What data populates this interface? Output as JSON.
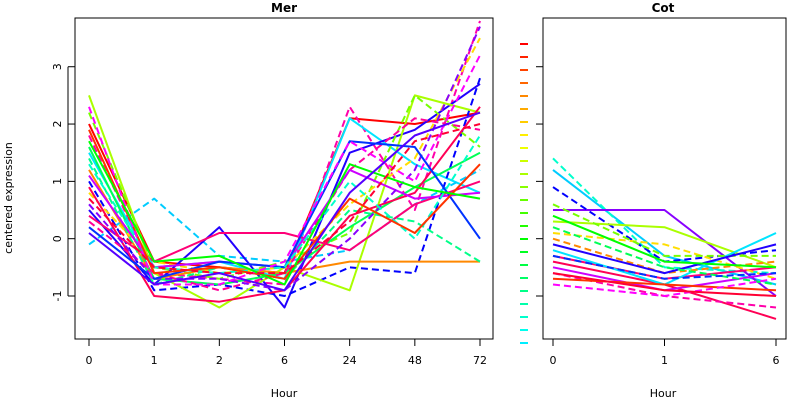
{
  "chart_data": [
    {
      "type": "line",
      "title": "Mer",
      "xlabel": "Hour",
      "ylabel": "centered expression",
      "categories": [
        "0",
        "1",
        "2",
        "6",
        "24",
        "48",
        "72"
      ],
      "yticks": [
        -1,
        0,
        1,
        2,
        3
      ],
      "ylim": [
        -1.75,
        3.85
      ],
      "grid": false,
      "series": [
        {
          "color": "#ff0000",
          "dash": false,
          "values": [
            2.0,
            -0.4,
            -0.5,
            -0.6,
            2.1,
            2.0,
            2.2
          ]
        },
        {
          "color": "#ff00aa",
          "dash": true,
          "values": [
            1.8,
            -0.6,
            -0.7,
            -0.8,
            2.3,
            0.5,
            3.8
          ]
        },
        {
          "color": "#00e5ff",
          "dash": false,
          "values": [
            1.5,
            -0.5,
            -0.4,
            -0.7,
            2.1,
            1.3,
            0.8
          ]
        },
        {
          "color": "#00ccff",
          "dash": true,
          "values": [
            -0.1,
            0.7,
            -0.3,
            -0.4,
            -0.2,
            0.6,
            1.2
          ]
        },
        {
          "color": "#2200ff",
          "dash": false,
          "values": [
            0.5,
            -0.8,
            0.2,
            -1.2,
            1.5,
            1.9,
            2.7
          ]
        },
        {
          "color": "#0000ff",
          "dash": true,
          "values": [
            1.0,
            -0.9,
            -0.8,
            -1.0,
            -0.5,
            -0.6,
            2.8
          ]
        },
        {
          "color": "#aaff00",
          "dash": false,
          "values": [
            2.5,
            -0.6,
            -1.2,
            -0.5,
            -0.9,
            2.5,
            2.2
          ]
        },
        {
          "color": "#77ff00",
          "dash": true,
          "values": [
            2.2,
            -0.5,
            -0.7,
            -0.4,
            0.1,
            2.5,
            1.6
          ]
        },
        {
          "color": "#ff8800",
          "dash": false,
          "values": [
            1.2,
            -0.7,
            -0.5,
            -0.6,
            -0.4,
            -0.4,
            -0.4
          ]
        },
        {
          "color": "#ffdd00",
          "dash": true,
          "values": [
            0.8,
            -0.4,
            -0.6,
            -0.5,
            0.6,
            1.4,
            3.5
          ]
        },
        {
          "color": "#00ff55",
          "dash": false,
          "values": [
            1.6,
            -0.7,
            -0.8,
            -0.6,
            0.2,
            0.9,
            1.5
          ]
        },
        {
          "color": "#00ff88",
          "dash": true,
          "values": [
            1.4,
            -0.8,
            -0.5,
            -0.7,
            0.5,
            0.3,
            -0.4
          ]
        },
        {
          "color": "#ff0055",
          "dash": false,
          "values": [
            0.9,
            -1.0,
            -1.1,
            -0.9,
            0.4,
            0.8,
            2.3
          ]
        },
        {
          "color": "#ff0099",
          "dash": true,
          "values": [
            0.3,
            -0.6,
            -0.9,
            -0.6,
            1.2,
            2.1,
            1.9
          ]
        },
        {
          "color": "#ff0077",
          "dash": false,
          "values": [
            0.4,
            -0.4,
            0.1,
            0.1,
            -0.2,
            0.6,
            1.0
          ]
        },
        {
          "color": "#cc00ff",
          "dash": false,
          "values": [
            1.1,
            -0.5,
            -0.4,
            -0.5,
            1.2,
            0.7,
            0.8
          ]
        },
        {
          "color": "#8800ff",
          "dash": true,
          "values": [
            0.6,
            -0.7,
            -0.7,
            -0.9,
            0.0,
            1.2,
            3.7
          ]
        },
        {
          "color": "#0033ff",
          "dash": false,
          "values": [
            0.2,
            -0.7,
            -0.4,
            -0.5,
            1.7,
            1.6,
            0.0
          ]
        },
        {
          "color": "#00ffcc",
          "dash": true,
          "values": [
            1.3,
            -0.5,
            -0.6,
            -0.5,
            1.0,
            0.0,
            1.8
          ]
        },
        {
          "color": "#ff3300",
          "dash": false,
          "values": [
            1.9,
            -0.6,
            -0.5,
            -0.7,
            0.7,
            0.1,
            1.3
          ]
        },
        {
          "color": "#ff00ff",
          "dash": true,
          "values": [
            2.3,
            -0.8,
            -0.8,
            -0.4,
            1.7,
            1.0,
            3.2
          ]
        },
        {
          "color": "#00ff00",
          "dash": false,
          "values": [
            1.7,
            -0.4,
            -0.3,
            -0.8,
            1.3,
            0.9,
            0.7
          ]
        },
        {
          "color": "#ff0033",
          "dash": true,
          "values": [
            0.7,
            -0.5,
            -0.6,
            -0.6,
            0.3,
            1.7,
            2.0
          ]
        },
        {
          "color": "#5500ff",
          "dash": false,
          "values": [
            0.1,
            -0.8,
            -0.6,
            -0.9,
            0.8,
            1.8,
            2.2
          ]
        }
      ]
    },
    {
      "type": "line",
      "title": "Cot",
      "xlabel": "Hour",
      "ylabel": "",
      "categories": [
        "0",
        "1",
        "6"
      ],
      "ylim": [
        -1.75,
        3.85
      ],
      "grid": false,
      "series": [
        {
          "color": "#00ccff",
          "dash": false,
          "values": [
            1.2,
            -0.3,
            -0.8
          ]
        },
        {
          "color": "#00ffcc",
          "dash": true,
          "values": [
            1.4,
            -0.5,
            -0.6
          ]
        },
        {
          "color": "#8800ff",
          "dash": false,
          "values": [
            0.5,
            0.5,
            -1.0
          ]
        },
        {
          "color": "#0000ff",
          "dash": true,
          "values": [
            0.9,
            -0.4,
            -0.2
          ]
        },
        {
          "color": "#ff0055",
          "dash": false,
          "values": [
            -0.4,
            -0.8,
            -1.4
          ]
        },
        {
          "color": "#ff00aa",
          "dash": true,
          "values": [
            -0.6,
            -1.0,
            -1.2
          ]
        },
        {
          "color": "#ff0077",
          "dash": false,
          "values": [
            -0.3,
            -0.7,
            -0.5
          ]
        },
        {
          "color": "#aaff00",
          "dash": false,
          "values": [
            0.3,
            0.2,
            -0.5
          ]
        },
        {
          "color": "#ffdd00",
          "dash": true,
          "values": [
            0.1,
            -0.1,
            -0.7
          ]
        },
        {
          "color": "#00e5ff",
          "dash": false,
          "values": [
            -0.2,
            -0.8,
            0.1
          ]
        },
        {
          "color": "#ff8800",
          "dash": true,
          "values": [
            0.0,
            -0.6,
            -0.4
          ]
        },
        {
          "color": "#cc00ff",
          "dash": false,
          "values": [
            -0.5,
            -0.9,
            -0.6
          ]
        },
        {
          "color": "#77ff00",
          "dash": true,
          "values": [
            0.6,
            -0.3,
            -0.3
          ]
        },
        {
          "color": "#2200ff",
          "dash": false,
          "values": [
            -0.1,
            -0.6,
            -0.1
          ]
        },
        {
          "color": "#00ff55",
          "dash": true,
          "values": [
            0.2,
            -0.5,
            -0.8
          ]
        },
        {
          "color": "#ff3300",
          "dash": false,
          "values": [
            -0.7,
            -0.8,
            -0.9
          ]
        },
        {
          "color": "#ff00ff",
          "dash": true,
          "values": [
            -0.8,
            -1.0,
            -0.7
          ]
        },
        {
          "color": "#00ff00",
          "dash": false,
          "values": [
            0.4,
            -0.4,
            -0.5
          ]
        },
        {
          "color": "#0033ff",
          "dash": true,
          "values": [
            -0.3,
            -0.7,
            -0.6
          ]
        },
        {
          "color": "#ff0033",
          "dash": false,
          "values": [
            -0.6,
            -0.9,
            -1.0
          ]
        }
      ]
    }
  ],
  "legend_marks": [
    "#ff0000",
    "#ff2200",
    "#ff4400",
    "#ff6600",
    "#ff8800",
    "#ffaa00",
    "#ffcc00",
    "#ffee00",
    "#eeff00",
    "#ccff00",
    "#aaff00",
    "#88ff00",
    "#66ff00",
    "#44ff00",
    "#22ff00",
    "#00ff00",
    "#00ff22",
    "#00ff44",
    "#00ff66",
    "#00ff88",
    "#00ffaa",
    "#00ffcc",
    "#00ffee",
    "#00eeff"
  ]
}
